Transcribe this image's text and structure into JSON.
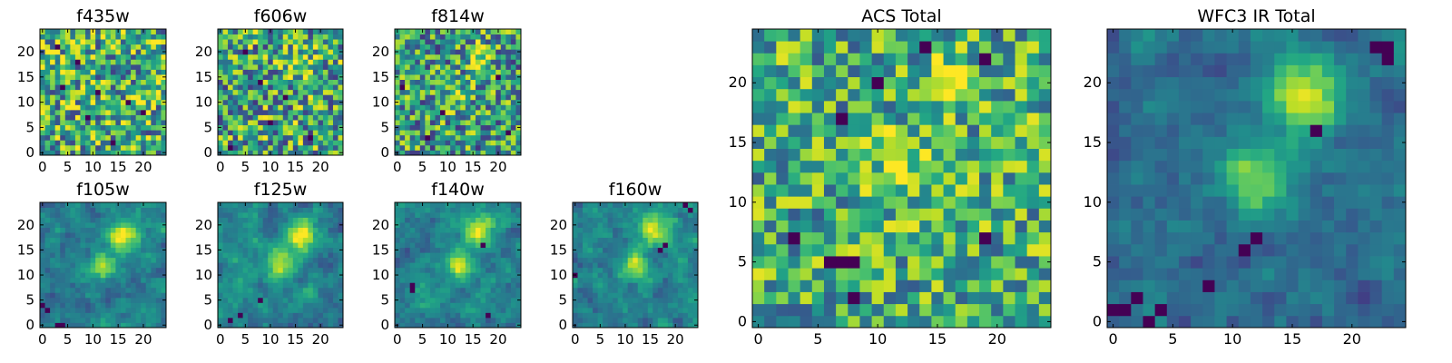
{
  "chart_data": [
    {
      "type": "heatmap",
      "title": "f435w",
      "grid_size": 25,
      "xlim": [
        0,
        24
      ],
      "ylim": [
        0,
        24
      ],
      "xticks": [
        0,
        5,
        10,
        15,
        20
      ],
      "yticks": [
        0,
        5,
        10,
        15,
        20
      ],
      "colormap": "viridis",
      "seed": 11,
      "sources": [],
      "noise": 0.42,
      "smooth": 0,
      "base": 0.62,
      "dark_pixels": [
        [
          4,
          13
        ],
        [
          9,
          7
        ],
        [
          11,
          12
        ],
        [
          17,
          10
        ],
        [
          14,
          2
        ],
        [
          20,
          8
        ],
        [
          7,
          18
        ],
        [
          3,
          21
        ]
      ]
    },
    {
      "type": "heatmap",
      "title": "f606w",
      "grid_size": 25,
      "xlim": [
        0,
        24
      ],
      "ylim": [
        0,
        24
      ],
      "xticks": [
        0,
        5,
        10,
        15,
        20
      ],
      "yticks": [
        0,
        5,
        10,
        15,
        20
      ],
      "colormap": "viridis",
      "seed": 23,
      "sources": [
        [
          16,
          18,
          0.25,
          2.5
        ]
      ],
      "noise": 0.42,
      "smooth": 0,
      "base": 0.58,
      "dark_pixels": [
        [
          2,
          1
        ],
        [
          10,
          6
        ],
        [
          8,
          14
        ],
        [
          5,
          20
        ],
        [
          18,
          3
        ],
        [
          13,
          11
        ]
      ]
    },
    {
      "type": "heatmap",
      "title": "f814w",
      "grid_size": 25,
      "xlim": [
        0,
        24
      ],
      "ylim": [
        0,
        24
      ],
      "xticks": [
        0,
        5,
        10,
        15,
        20
      ],
      "yticks": [
        0,
        5,
        10,
        15,
        20
      ],
      "colormap": "viridis",
      "seed": 37,
      "sources": [
        [
          16,
          19,
          0.45,
          1.6
        ],
        [
          12,
          11,
          0.25,
          2.0
        ]
      ],
      "noise": 0.4,
      "smooth": 0,
      "base": 0.55,
      "dark_pixels": [
        [
          1,
          13
        ],
        [
          6,
          3
        ],
        [
          9,
          8
        ],
        [
          20,
          15
        ],
        [
          22,
          4
        ]
      ]
    },
    {
      "type": "heatmap",
      "title": "f105w",
      "grid_size": 25,
      "xlim": [
        0,
        24
      ],
      "ylim": [
        0,
        24
      ],
      "xticks": [
        0,
        5,
        10,
        15,
        20
      ],
      "yticks": [
        0,
        5,
        10,
        15,
        20
      ],
      "colormap": "viridis",
      "seed": 41,
      "sources": [
        [
          16,
          18,
          0.55,
          2.2
        ],
        [
          12,
          12,
          0.45,
          2.0
        ]
      ],
      "noise": 0.3,
      "smooth": 1,
      "base": 0.42,
      "dark_pixels": [
        [
          3,
          0
        ],
        [
          4,
          0
        ],
        [
          0,
          4
        ],
        [
          1,
          3
        ]
      ]
    },
    {
      "type": "heatmap",
      "title": "f125w",
      "grid_size": 25,
      "xlim": [
        0,
        24
      ],
      "ylim": [
        0,
        24
      ],
      "xticks": [
        0,
        5,
        10,
        15,
        20
      ],
      "yticks": [
        0,
        5,
        10,
        15,
        20
      ],
      "colormap": "viridis",
      "seed": 53,
      "sources": [
        [
          16,
          18,
          0.55,
          2.2
        ],
        [
          12,
          12,
          0.45,
          2.0
        ]
      ],
      "noise": 0.3,
      "smooth": 1,
      "base": 0.45,
      "dark_pixels": [
        [
          4,
          2
        ],
        [
          8,
          5
        ],
        [
          2,
          1
        ]
      ]
    },
    {
      "type": "heatmap",
      "title": "f140w",
      "grid_size": 25,
      "xlim": [
        0,
        24
      ],
      "ylim": [
        0,
        24
      ],
      "xticks": [
        0,
        5,
        10,
        15,
        20
      ],
      "yticks": [
        0,
        5,
        10,
        15,
        20
      ],
      "colormap": "viridis",
      "seed": 67,
      "sources": [
        [
          16,
          19,
          0.5,
          2.2
        ],
        [
          12,
          12,
          0.45,
          2.0
        ]
      ],
      "noise": 0.3,
      "smooth": 1,
      "base": 0.45,
      "dark_pixels": [
        [
          3,
          8
        ],
        [
          3,
          7
        ],
        [
          17,
          16
        ],
        [
          18,
          2
        ]
      ]
    },
    {
      "type": "heatmap",
      "title": "f160w",
      "grid_size": 25,
      "xlim": [
        0,
        24
      ],
      "ylim": [
        0,
        24
      ],
      "xticks": [
        0,
        5,
        10,
        15,
        20
      ],
      "yticks": [
        0,
        5,
        10,
        15,
        20
      ],
      "colormap": "viridis",
      "seed": 79,
      "sources": [
        [
          16,
          19,
          0.55,
          2.0
        ],
        [
          12,
          12,
          0.45,
          2.0
        ]
      ],
      "noise": 0.3,
      "smooth": 1,
      "base": 0.45,
      "dark_pixels": [
        [
          23,
          23
        ],
        [
          22,
          24
        ],
        [
          17,
          15
        ],
        [
          18,
          16
        ],
        [
          0,
          10
        ]
      ]
    },
    {
      "type": "heatmap",
      "title": "ACS Total",
      "grid_size": 25,
      "xlim": [
        0,
        24
      ],
      "ylim": [
        0,
        24
      ],
      "xticks": [
        0,
        5,
        10,
        15,
        20
      ],
      "yticks": [
        0,
        5,
        10,
        15,
        20
      ],
      "colormap": "viridis",
      "seed": 97,
      "sources": [
        [
          16,
          20,
          0.35,
          1.5
        ],
        [
          12,
          13,
          0.25,
          2.0
        ]
      ],
      "noise": 0.34,
      "smooth": 0,
      "base": 0.62,
      "dark_pixels": [
        [
          14,
          23
        ],
        [
          7,
          17
        ],
        [
          10,
          20
        ],
        [
          6,
          5
        ],
        [
          7,
          5
        ],
        [
          8,
          5
        ],
        [
          8,
          2
        ],
        [
          19,
          7
        ],
        [
          19,
          22
        ],
        [
          3,
          7
        ]
      ]
    },
    {
      "type": "heatmap",
      "title": "WFC3 IR Total",
      "grid_size": 25,
      "xlim": [
        0,
        24
      ],
      "ylim": [
        0,
        24
      ],
      "xticks": [
        0,
        5,
        10,
        15,
        20
      ],
      "yticks": [
        0,
        5,
        10,
        15,
        20
      ],
      "colormap": "viridis",
      "seed": 113,
      "sources": [
        [
          16,
          19,
          0.6,
          2.2
        ],
        [
          12,
          12,
          0.45,
          2.0
        ]
      ],
      "noise": 0.22,
      "smooth": 1,
      "base": 0.36,
      "dark_pixels": [
        [
          23,
          23
        ],
        [
          22,
          23
        ],
        [
          23,
          22
        ],
        [
          17,
          16
        ],
        [
          12,
          7
        ],
        [
          11,
          6
        ],
        [
          3,
          0
        ],
        [
          4,
          1
        ],
        [
          0,
          1
        ],
        [
          1,
          1
        ],
        [
          2,
          2
        ],
        [
          8,
          3
        ]
      ]
    }
  ]
}
